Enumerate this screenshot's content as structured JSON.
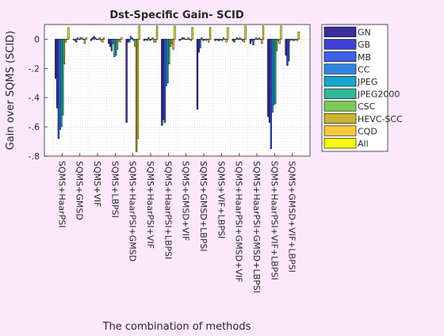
{
  "chart_data": {
    "type": "bar",
    "title": "Dst-Specific Gain- SCID",
    "xlabel": "The combination of methods",
    "ylabel": "Gain over SQMS (SCID)",
    "ylim": [
      -0.8,
      0.1
    ],
    "yticks": [
      -0.8,
      -0.6,
      -0.4,
      -0.2,
      0
    ],
    "grid": true,
    "legend_position": "outside-right",
    "categories": [
      "SQMS+HaarPSI",
      "SQMS+GMSD",
      "SQMS+VIF",
      "SQMS+LBPSI",
      "SQMS+HaarPSI+GMSD",
      "SQMS+HaarPSI+VIF",
      "SQMS+HaarPSI+LBPSI",
      "SQMS+GMSD+VIF",
      "SQMS+GMSD+LBPSI",
      "SQMS+VIF+LBPSI",
      "SQMS+HaarPSI+GMSD+VIF",
      "SQMS+HaarPSI+GMSD+LBPSI",
      "SQMS+HaarPSI+VIF+LBPSI",
      "SQMS+GMSD+VIF+LBPSI"
    ],
    "series": [
      {
        "name": "GN",
        "color": "#3b2e9c",
        "values": [
          -0.27,
          0.0,
          -0.01,
          -0.03,
          -0.57,
          -0.01,
          -0.59,
          -0.01,
          -0.48,
          -0.01,
          -0.01,
          -0.03,
          -0.53,
          -0.11
        ]
      },
      {
        "name": "GB",
        "color": "#4040d8",
        "values": [
          -0.47,
          -0.01,
          0.01,
          -0.05,
          -0.02,
          0.0,
          -0.55,
          0.0,
          -0.09,
          0.0,
          -0.02,
          -0.01,
          -0.57,
          -0.18
        ]
      },
      {
        "name": "MB",
        "color": "#3d62e6",
        "values": [
          -0.68,
          -0.02,
          0.02,
          -0.08,
          -0.02,
          -0.01,
          -0.57,
          0.01,
          -0.06,
          -0.01,
          0.0,
          -0.04,
          -0.75,
          -0.15
        ]
      },
      {
        "name": "CC",
        "color": "#2f86e0",
        "values": [
          -0.62,
          0.01,
          0.01,
          -0.03,
          0.02,
          0.01,
          -0.32,
          0.01,
          0.01,
          -0.01,
          0.01,
          0.0,
          -0.5,
          -0.01
        ]
      },
      {
        "name": "JPEG",
        "color": "#19a4cf",
        "values": [
          -0.6,
          0.0,
          0.0,
          -0.12,
          0.01,
          -0.01,
          -0.3,
          0.0,
          -0.01,
          0.0,
          0.0,
          0.01,
          -0.45,
          0.0
        ]
      },
      {
        "name": "JPEG2000",
        "color": "#30b899",
        "values": [
          -0.52,
          0.01,
          0.0,
          -0.11,
          -0.01,
          0.0,
          -0.17,
          0.0,
          0.0,
          -0.01,
          0.01,
          0.0,
          -0.44,
          -0.01
        ]
      },
      {
        "name": "CSC",
        "color": "#7ec759",
        "values": [
          -0.17,
          0.01,
          0.01,
          -0.07,
          -0.05,
          0.01,
          -0.05,
          0.01,
          -0.01,
          0.01,
          0.0,
          0.01,
          -0.08,
          -0.01
        ]
      },
      {
        "name": "HEVC-SCC",
        "color": "#c9b531",
        "values": [
          -0.02,
          0.0,
          -0.01,
          -0.01,
          -0.77,
          -0.02,
          -0.03,
          0.0,
          0.0,
          0.0,
          -0.01,
          0.0,
          -0.01,
          0.0
        ]
      },
      {
        "name": "CQD",
        "color": "#f9c83a",
        "values": [
          0.0,
          -0.03,
          -0.02,
          -0.02,
          -0.68,
          -0.02,
          -0.07,
          -0.01,
          -0.02,
          -0.02,
          -0.02,
          -0.03,
          -0.03,
          -0.01
        ]
      },
      {
        "name": "All",
        "color": "#f9f914",
        "values": [
          0.08,
          0.01,
          0.01,
          0.01,
          0.09,
          0.09,
          0.09,
          0.08,
          0.08,
          0.08,
          0.09,
          0.09,
          0.09,
          0.05
        ]
      }
    ]
  }
}
